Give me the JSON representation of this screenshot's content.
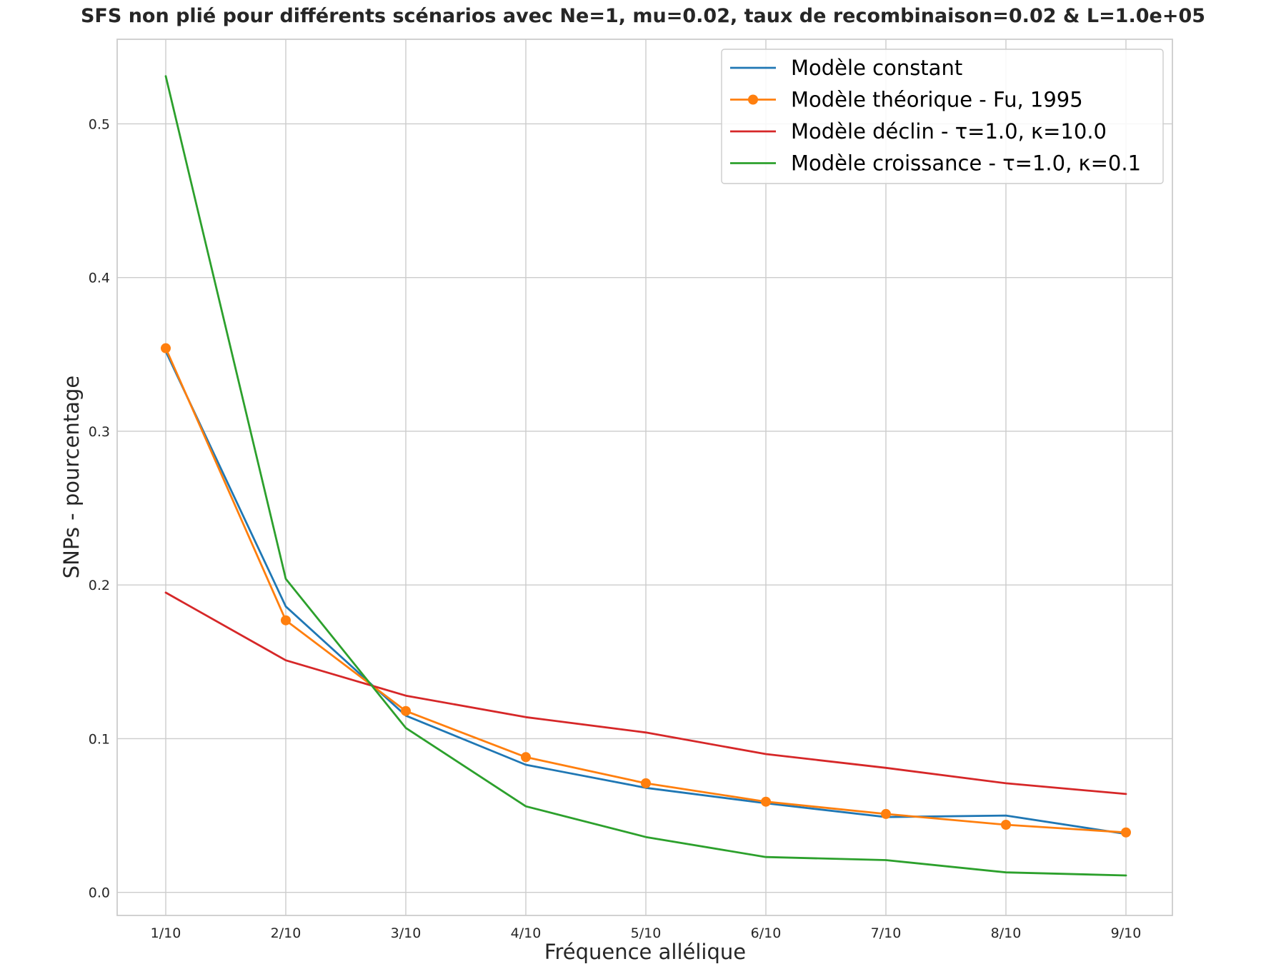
{
  "chart_data": {
    "type": "line",
    "title": "SFS non plié pour différents scénarios avec Ne=1, mu=0.02, taux de recombinaison=0.02 & L=1.0e+05",
    "xlabel": "Fréquence allélique",
    "ylabel": "SNPs - pourcentage",
    "categories": [
      "1/10",
      "2/10",
      "3/10",
      "4/10",
      "5/10",
      "6/10",
      "7/10",
      "8/10",
      "9/10"
    ],
    "ylim": [
      -0.015,
      0.555
    ],
    "yticks": [
      0.0,
      0.1,
      0.2,
      0.3,
      0.4,
      0.5
    ],
    "ytick_labels": [
      "0.0",
      "0.1",
      "0.2",
      "0.3",
      "0.4",
      "0.5"
    ],
    "grid": true,
    "legend_position": "top-right",
    "series": [
      {
        "name": "Modèle constant",
        "color": "#1f77b4",
        "marker": "none",
        "values": [
          0.352,
          0.186,
          0.115,
          0.083,
          0.068,
          0.058,
          0.049,
          0.05,
          0.038
        ]
      },
      {
        "name": "Modèle théorique - Fu, 1995",
        "color": "#ff7f0e",
        "marker": "circle",
        "values": [
          0.354,
          0.177,
          0.118,
          0.088,
          0.071,
          0.059,
          0.051,
          0.044,
          0.039
        ]
      },
      {
        "name": "Modèle déclin - τ=1.0, κ=10.0",
        "color": "#d62728",
        "marker": "none",
        "values": [
          0.195,
          0.151,
          0.128,
          0.114,
          0.104,
          0.09,
          0.081,
          0.071,
          0.064
        ]
      },
      {
        "name": "Modèle croissance - τ=1.0, κ=0.1",
        "color": "#2ca02c",
        "marker": "none",
        "values": [
          0.531,
          0.204,
          0.107,
          0.056,
          0.036,
          0.023,
          0.021,
          0.013,
          0.011
        ]
      }
    ]
  }
}
